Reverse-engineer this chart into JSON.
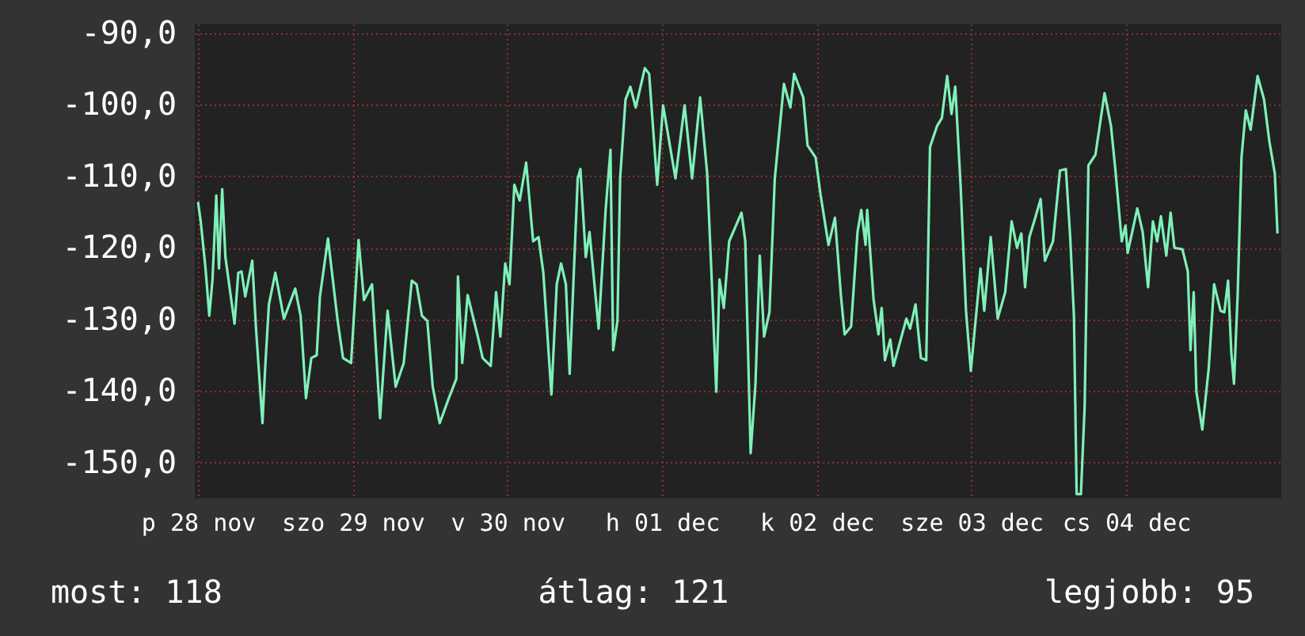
{
  "chart_data": {
    "type": "line",
    "x": [
      "--11-28T12:00",
      "--11-28T12:25",
      "--11-28T13:10",
      "--11-28T13:45",
      "--11-28T14:15",
      "--11-28T14:50",
      "--11-28T15:15",
      "--11-28T15:45",
      "--11-28T16:15",
      "--11-28T17:40",
      "--11-28T18:15",
      "--11-28T18:45",
      "--11-28T19:20",
      "--11-28T20:25",
      "--11-28T21:00",
      "--11-28T22:00",
      "--11-28T22:25",
      "--11-28T23:00",
      "--11-29T00:00",
      "--11-29T01:20",
      "--11-29T03:05",
      "--11-29T03:55",
      "--11-29T04:45",
      "--11-29T05:35",
      "--11-29T06:25",
      "--11-29T06:55",
      "--11-29T08:10",
      "--11-29T09:40",
      "--11-29T10:30",
      "--11-29T11:45",
      "--11-29T12:55",
      "--11-29T13:45",
      "--11-29T15:00",
      "--11-29T16:15",
      "--11-29T17:25",
      "--11-29T18:40",
      "--11-29T19:55",
      "--11-29T21:10",
      "--11-29T21:55",
      "--11-29T22:45",
      "--11-29T23:35",
      "--11-30T00:25",
      "--11-30T01:30",
      "--11-30T02:50",
      "--11-30T04:05",
      "--11-30T04:20",
      "--11-30T05:00",
      "--11-30T05:50",
      "--11-30T07:25",
      "--11-30T08:10",
      "--11-30T09:25",
      "--11-30T10:15",
      "--11-30T10:55",
      "--11-30T11:40",
      "--11-30T12:20",
      "--11-30T13:05",
      "--11-30T13:55",
      "--11-30T14:55",
      "--11-30T16:00",
      "--11-30T16:50",
      "--11-30T17:35",
      "--11-30T18:50",
      "--11-30T19:40",
      "--11-30T20:20",
      "--11-30T21:05",
      "--11-30T21:40",
      "--11-30T22:55",
      "--11-30T23:20",
      "--12-01T00:10",
      "--12-01T00:45",
      "--12-01T02:10",
      "--12-01T03:15",
      "--12-01T04:00",
      "--12-01T04:25",
      "--12-01T05:05",
      "--12-01T05:30",
      "--12-01T06:20",
      "--12-01T07:05",
      "--12-01T07:55",
      "--12-01T09:20",
      "--12-01T10:00",
      "--12-01T11:15",
      "--12-01T12:10",
      "--12-01T14:05",
      "--12-01T15:30",
      "--12-01T16:40",
      "--12-01T17:55",
      "--12-01T19:00",
      "--12-01T19:40",
      "--12-01T20:25",
      "--12-01T20:55",
      "--12-01T21:35",
      "--12-01T22:25",
      "--12-02T00:20",
      "--12-02T00:55",
      "--12-02T01:45",
      "--12-02T02:30",
      "--12-02T03:10",
      "--12-02T03:50",
      "--12-02T04:40",
      "--12-02T05:30",
      "--12-02T06:55",
      "--12-02T07:55",
      "--12-02T08:30",
      "--12-02T09:55",
      "--12-02T10:35",
      "--12-02T11:50",
      "--12-02T12:35",
      "--12-02T13:50",
      "--12-02T14:50",
      "--12-02T15:45",
      "--12-02T16:20",
      "--12-02T17:20",
      "--12-02T18:20",
      "--12-02T18:55",
      "--12-02T19:35",
      "--12-02T19:50",
      "--12-02T20:50",
      "--12-02T21:35",
      "--12-02T22:05",
      "--12-02T22:35",
      "--12-02T23:25",
      "--12-02T23:55",
      "--12-03T01:55",
      "--12-03T02:30",
      "--12-03T03:20",
      "--12-03T04:10",
      "--12-03T05:00",
      "--12-03T05:35",
      "--12-03T06:40",
      "--12-03T07:25",
      "--12-03T08:15",
      "--12-03T08:55",
      "--12-03T09:30",
      "--12-03T10:20",
      "--12-03T11:10",
      "--12-03T11:55",
      "--12-03T13:25",
      "--12-03T14:00",
      "--12-03T15:00",
      "--12-03T16:05",
      "--12-03T17:15",
      "--12-03T18:15",
      "--12-03T19:05",
      "--12-03T19:45",
      "--12-03T20:20",
      "--12-03T21:00",
      "--12-03T21:45",
      "--12-03T22:45",
      "--12-03T23:25",
      "--12-04T00:40",
      "--12-04T01:45",
      "--12-04T02:40",
      "--12-04T03:20",
      "--12-04T03:55",
      "--12-04T04:20",
      "--12-04T05:00",
      "--12-04T05:35",
      "--12-04T06:10",
      "--12-04T07:15",
      "--12-04T08:40",
      "--12-04T09:40",
      "--12-04T10:20",
      "--12-04T11:20",
      "--12-04T11:55",
      "--12-04T12:15",
      "--12-04T13:45",
      "--12-04T14:35",
      "--12-04T15:25",
      "--12-04T16:10",
      "--12-04T16:50",
      "--12-04T17:25",
      "--12-04T18:15",
      "--12-04T18:55",
      "--12-04T19:30",
      "--12-04T20:45",
      "--12-04T21:35",
      "--12-04T22:00",
      "--12-04T22:30",
      "--12-04T22:55",
      "--12-04T23:50",
      "--12-05T00:50",
      "--12-05T01:40",
      "--12-05T02:40",
      "--12-05T03:15",
      "--12-05T03:50",
      "--12-05T04:20",
      "--12-05T04:45",
      "--12-05T05:20",
      "--12-05T05:55",
      "--12-05T06:35",
      "--12-05T07:20",
      "--12-05T08:25",
      "--12-05T09:25",
      "--12-05T10:15",
      "--12-05T11:05",
      "--12-05T11:30"
    ],
    "series": [
      {
        "color": "#7ff0b8",
        "values": [
          -113.6,
          -116.3,
          -122.9,
          -129.5,
          -124.4,
          -112.7,
          -122.9,
          -111.8,
          -121.3,
          -130.6,
          -123.5,
          -123.3,
          -126.8,
          -121.8,
          -131.3,
          -144.5,
          -136.8,
          -127.9,
          -123.5,
          -129.9,
          -125.7,
          -129.5,
          -141,
          -135.4,
          -135,
          -126.8,
          -118.7,
          -130.2,
          -135.4,
          -136.1,
          -118.9,
          -127.3,
          -125.1,
          -143.8,
          -128.8,
          -139.4,
          -136.1,
          -124.6,
          -125.1,
          -129.5,
          -130.2,
          -139.4,
          -144.5,
          -141.2,
          -138.3,
          -124,
          -136.1,
          -126.6,
          -132.4,
          -135.4,
          -136.5,
          -126.2,
          -132.4,
          -122.2,
          -125.1,
          -111.2,
          -113.4,
          -108.1,
          -119.1,
          -118.5,
          -123.5,
          -140.5,
          -125.1,
          -122.2,
          -125.1,
          -137.6,
          -110.3,
          -109,
          -121.3,
          -117.8,
          -131.3,
          -114.7,
          -106.3,
          -134.3,
          -130.2,
          -110.3,
          -99.3,
          -97.5,
          -100.4,
          -94.9,
          -95.7,
          -111.2,
          -100.1,
          -110.3,
          -100.1,
          -110.3,
          -99,
          -109.6,
          -123.5,
          -140.1,
          -124.4,
          -128.4,
          -119.1,
          -115.1,
          -119.1,
          -148.7,
          -139,
          -121.1,
          -132.4,
          -129,
          -110.3,
          -97.1,
          -100.4,
          -95.7,
          -99,
          -105.7,
          -107.4,
          -112.5,
          -119.6,
          -115.8,
          -126.6,
          -132.1,
          -131,
          -117.8,
          -114.7,
          -119.6,
          -114.7,
          -127.3,
          -132.1,
          -128.4,
          -135.7,
          -132.8,
          -136.5,
          -129.9,
          -131.3,
          -127.9,
          -135.4,
          -135.7,
          -105.9,
          -103,
          -101.9,
          -96,
          -101.3,
          -97.5,
          -111.4,
          -128.8,
          -137.2,
          -122.9,
          -128.8,
          -118.5,
          -129.9,
          -126.2,
          -116.3,
          -120,
          -118,
          -125.5,
          -118.5,
          -116.3,
          -113.2,
          -121.8,
          -119.1,
          -109.2,
          -109,
          -118.5,
          -129.5,
          -154.4,
          -154.4,
          -142.1,
          -108.5,
          -107,
          -98.4,
          -103,
          -109,
          -119.1,
          -116.9,
          -120.7,
          -114.5,
          -117.8,
          -125.5,
          -116.3,
          -119.1,
          -115.6,
          -121.1,
          -115.1,
          -120,
          -120.2,
          -123.3,
          -134.3,
          -126.2,
          -140.1,
          -145.4,
          -136.8,
          -125.1,
          -128.8,
          -129,
          -124.6,
          -134.6,
          -139,
          -126.2,
          -107.4,
          -100.8,
          -103.5,
          -96,
          -99.3,
          -105.2,
          -109.6,
          -118
        ]
      }
    ],
    "xlim": [
      "--11-28T11:30",
      "--12-05T12:05"
    ],
    "xticks": [
      {
        "value": "--11-28T12:00",
        "label": "p 28 nov"
      },
      {
        "value": "--11-29T12:00",
        "label": "szo 29 nov"
      },
      {
        "value": "--11-30T12:00",
        "label": "v 30 nov"
      },
      {
        "value": "--12-01T12:00",
        "label": "h 01 dec"
      },
      {
        "value": "--12-02T12:00",
        "label": "k 02 dec"
      },
      {
        "value": "--12-03T12:00",
        "label": "sze 03 dec"
      },
      {
        "value": "--12-04T12:00",
        "label": "cs 04 dec"
      }
    ],
    "ylim": [
      -155,
      -88.7
    ],
    "yticks": [
      {
        "value": -90,
        "label": "-90,0"
      },
      {
        "value": -100,
        "label": "-100,0"
      },
      {
        "value": -110,
        "label": "-110,0"
      },
      {
        "value": -120,
        "label": "-120,0"
      },
      {
        "value": -130,
        "label": "-130,0"
      },
      {
        "value": -140,
        "label": "-140,0"
      },
      {
        "value": -150,
        "label": "-150,0"
      }
    ],
    "grid": true,
    "annotations": [
      "most: 118",
      "átlag: 121",
      "legjobb: 95"
    ]
  }
}
